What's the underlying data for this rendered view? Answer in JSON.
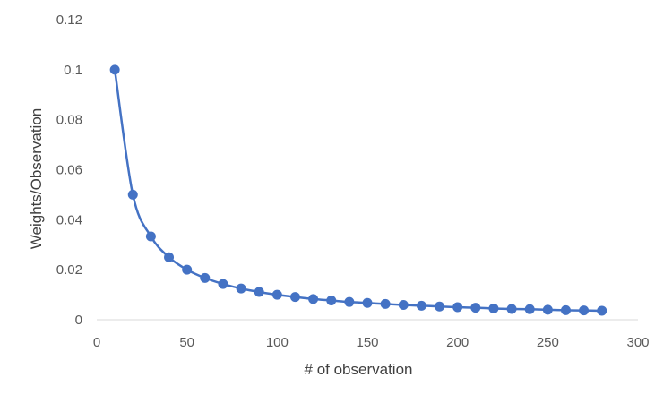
{
  "chart_data": {
    "type": "scatter",
    "title": "",
    "xlabel": "# of observation",
    "ylabel": "Weights/Observation",
    "xlim": [
      0,
      300
    ],
    "ylim": [
      0,
      0.12
    ],
    "xticks": [
      0,
      50,
      100,
      150,
      200,
      250,
      300
    ],
    "yticks": [
      0,
      0.02,
      0.04,
      0.06,
      0.08,
      0.1,
      0.12
    ],
    "xtick_labels": [
      "0",
      "50",
      "100",
      "150",
      "200",
      "250",
      "300"
    ],
    "ytick_labels": [
      "0",
      "0.02",
      "0.04",
      "0.06",
      "0.08",
      "0.1",
      "0.12"
    ],
    "grid": false,
    "smooth_line": true,
    "series": [
      {
        "name": "Weights/Observation",
        "color": "#4472C4",
        "x": [
          10,
          20,
          30,
          40,
          50,
          60,
          70,
          80,
          90,
          100,
          110,
          120,
          130,
          140,
          150,
          160,
          170,
          180,
          190,
          200,
          210,
          220,
          230,
          240,
          250,
          260,
          270,
          280
        ],
        "y": [
          0.1,
          0.05,
          0.0333,
          0.025,
          0.02,
          0.0167,
          0.0143,
          0.0125,
          0.0111,
          0.01,
          0.0091,
          0.0083,
          0.0077,
          0.0071,
          0.0067,
          0.0063,
          0.0059,
          0.0056,
          0.0053,
          0.005,
          0.0048,
          0.0045,
          0.0043,
          0.0042,
          0.004,
          0.0038,
          0.0037,
          0.0036
        ]
      }
    ]
  }
}
